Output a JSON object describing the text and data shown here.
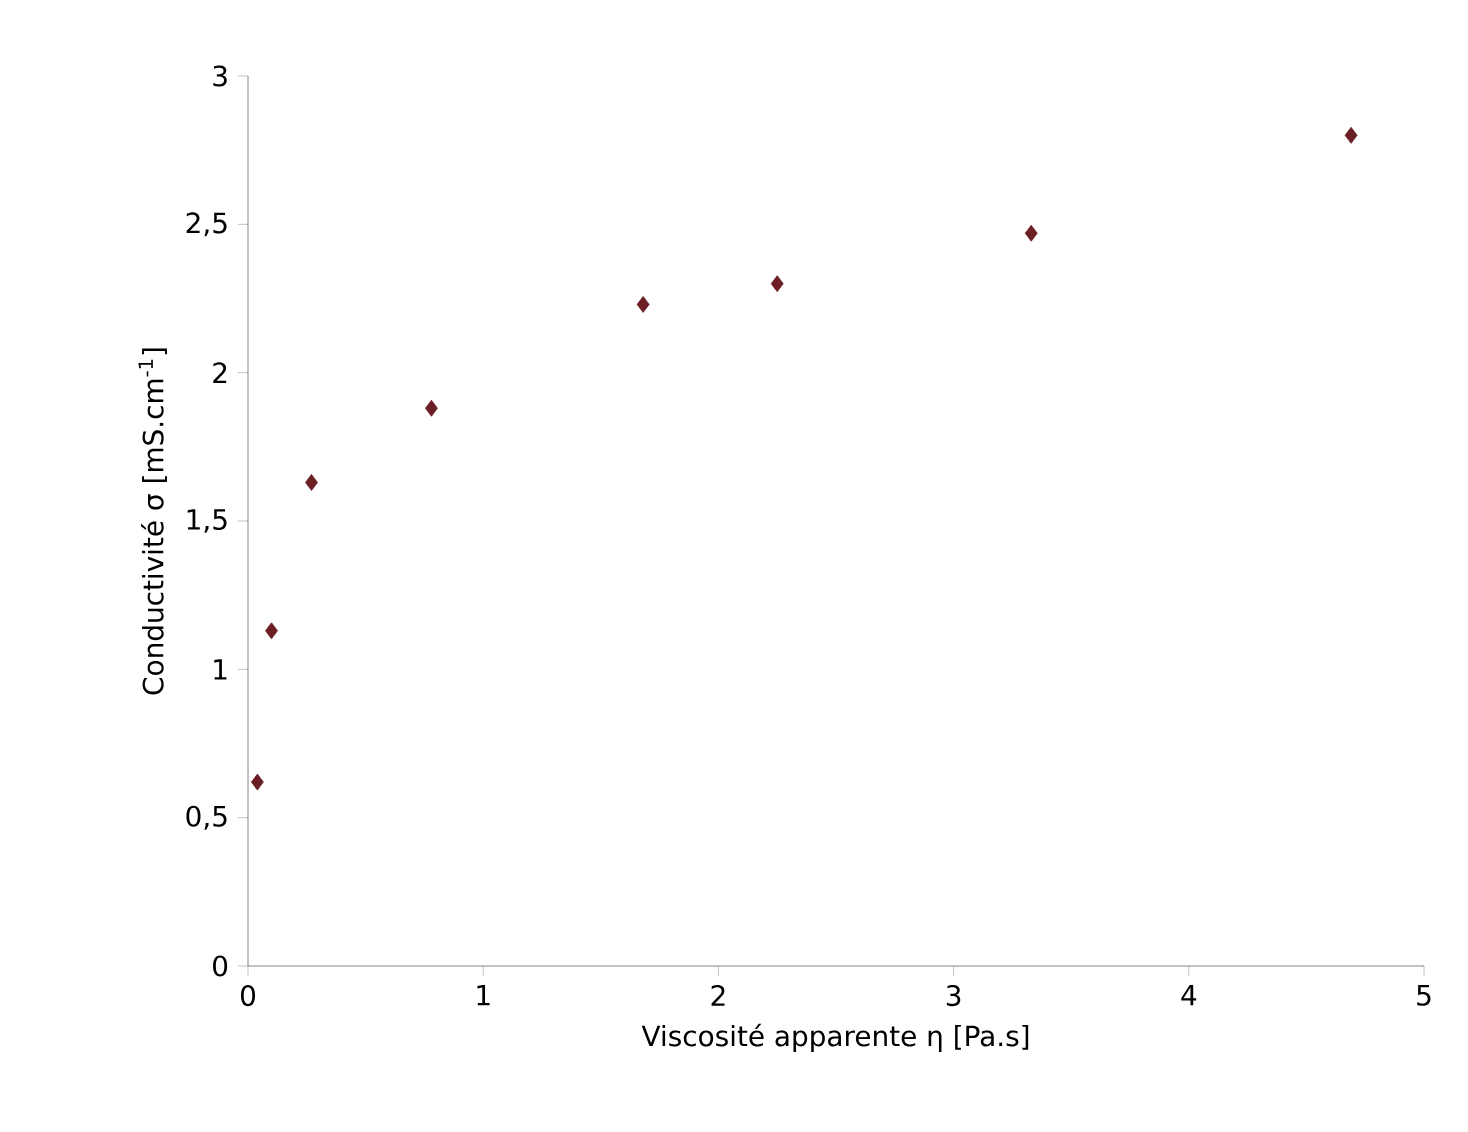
{
  "chart_data": {
    "type": "scatter",
    "xlabel": "Viscosité apparente η [Pa.s]",
    "ylabel": "Conductivité σ [mS.cm$^{-1}$]",
    "x": [
      0.04,
      0.1,
      0.27,
      0.78,
      1.68,
      2.25,
      3.33,
      4.69
    ],
    "series": [
      {
        "color": "#6b1f24",
        "values": [
          0.62,
          1.13,
          1.63,
          1.88,
          2.23,
          2.3,
          2.47,
          2.8
        ]
      }
    ],
    "xlim": [
      0,
      5
    ],
    "xticks": [
      0,
      1,
      2,
      3,
      4,
      5
    ],
    "ylim": [
      0,
      3
    ],
    "yticks": [
      0,
      {
        "value": 0.5,
        "label": "0,5"
      },
      1,
      {
        "value": 1.5,
        "label": "1,5"
      },
      2,
      {
        "value": 2.5,
        "label": "2,5"
      },
      3
    ],
    "marker": "diamond",
    "grid": false
  }
}
